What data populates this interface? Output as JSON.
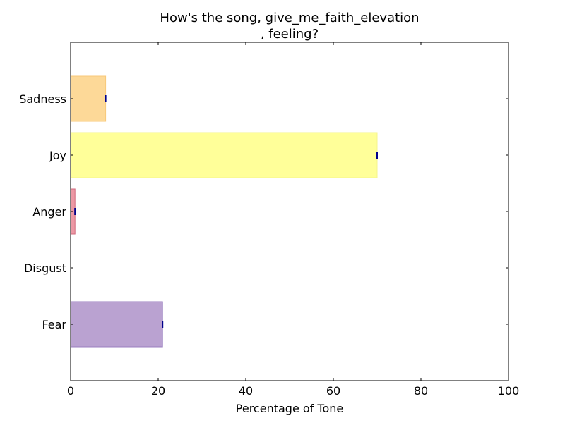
{
  "chart_data": {
    "type": "bar",
    "orientation": "horizontal",
    "title_line1": "How's the song, give_me_faith_elevation",
    "title_line2": ", feeling?",
    "xlabel": "Percentage of Tone",
    "ylabel": "",
    "xlim": [
      0,
      100
    ],
    "xticks": [
      "0",
      "20",
      "40",
      "60",
      "80",
      "100"
    ],
    "categories": [
      "Sadness",
      "Joy",
      "Anger",
      "Disgust",
      "Fear"
    ],
    "values": [
      8,
      70,
      1,
      0,
      21
    ],
    "colors": [
      "#fdd998",
      "#ffff99",
      "#ec98a4",
      "#ffffff",
      "#baa2d1"
    ],
    "edge_colors": [
      "#f8c87a",
      "#f5f58a",
      "#d16a7e",
      "#ffffff",
      "#9b7fc0"
    ],
    "grid": false
  }
}
